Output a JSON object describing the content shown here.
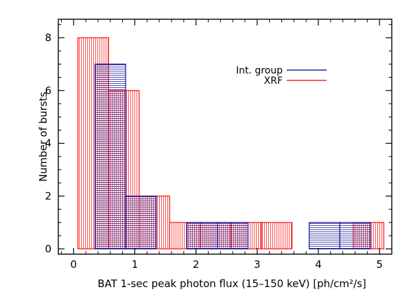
{
  "chart_data": {
    "type": "bar",
    "xlabel": "BAT 1-sec peak photon flux (15–150 keV) [ph/cm²/s]",
    "ylabel": "Number of bursts",
    "xlim": [
      -0.25,
      5.2
    ],
    "ylim": [
      -0.2,
      8.7
    ],
    "x_ticks": [
      0,
      1,
      2,
      3,
      4,
      5
    ],
    "y_ticks": [
      0,
      2,
      4,
      6,
      8
    ],
    "grid": false,
    "legend_position": "top-right",
    "series": [
      {
        "name": "Int. group",
        "color": "#2020a0",
        "pattern": "horizontal-hatch",
        "bins": [
          {
            "x0": 0.35,
            "x1": 0.85,
            "count": 7
          },
          {
            "x0": 0.85,
            "x1": 1.35,
            "count": 2
          },
          {
            "x0": 1.85,
            "x1": 2.35,
            "count": 1
          },
          {
            "x0": 2.35,
            "x1": 2.85,
            "count": 1
          },
          {
            "x0": 3.85,
            "x1": 4.35,
            "count": 1
          },
          {
            "x0": 4.35,
            "x1": 4.85,
            "count": 1
          }
        ]
      },
      {
        "name": "XRF",
        "color": "#ff2020",
        "pattern": "vertical-hatch",
        "bins": [
          {
            "x0": 0.07,
            "x1": 0.57,
            "count": 8
          },
          {
            "x0": 0.57,
            "x1": 1.07,
            "count": 6
          },
          {
            "x0": 1.07,
            "x1": 1.57,
            "count": 2
          },
          {
            "x0": 1.57,
            "x1": 2.07,
            "count": 1
          },
          {
            "x0": 2.07,
            "x1": 2.57,
            "count": 1
          },
          {
            "x0": 2.57,
            "x1": 3.07,
            "count": 1
          },
          {
            "x0": 3.07,
            "x1": 3.57,
            "count": 1
          },
          {
            "x0": 4.57,
            "x1": 5.07,
            "count": 1
          }
        ]
      }
    ]
  }
}
